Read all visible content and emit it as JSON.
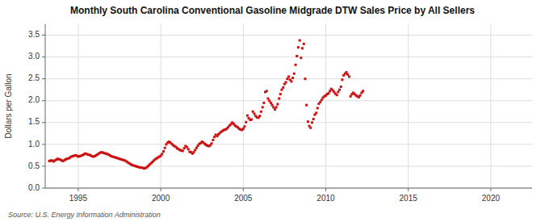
{
  "chart_data": {
    "type": "scatter",
    "title": "Monthly South Carolina Conventional Gasoline Midgrade DTW Sales Price by All Sellers",
    "ylabel": "Dollars per Gallon",
    "annotations": [
      "Source: U.S. Energy Information Administration"
    ],
    "color": "#cc1111",
    "marker": "square",
    "grid": true,
    "xlim": [
      1993.0,
      2022.5
    ],
    "ylim": [
      0.0,
      3.75
    ],
    "xticks": [
      1995,
      2000,
      2005,
      2010,
      2015,
      2020
    ],
    "yticks": [
      {
        "value": 0.0,
        "label": "0.0"
      },
      0.5,
      {
        "value": 1.0,
        "label": "1.0"
      },
      1.5,
      {
        "value": 2.0,
        "label": "2.0"
      },
      2.5,
      {
        "value": 3.0,
        "label": "3.0"
      },
      3.5
    ],
    "x": [
      1993.25,
      1993.33,
      1993.42,
      1993.5,
      1993.58,
      1993.67,
      1993.75,
      1993.83,
      1993.92,
      1994.0,
      1994.08,
      1994.17,
      1994.25,
      1994.33,
      1994.42,
      1994.5,
      1994.58,
      1994.67,
      1994.75,
      1994.83,
      1994.92,
      1995.0,
      1995.08,
      1995.17,
      1995.25,
      1995.33,
      1995.42,
      1995.5,
      1995.58,
      1995.67,
      1995.75,
      1995.83,
      1995.92,
      1996.0,
      1996.08,
      1996.17,
      1996.25,
      1996.33,
      1996.42,
      1996.5,
      1996.58,
      1996.67,
      1996.75,
      1996.83,
      1996.92,
      1997.0,
      1997.08,
      1997.17,
      1997.25,
      1997.33,
      1997.42,
      1997.5,
      1997.58,
      1997.67,
      1997.75,
      1997.83,
      1997.92,
      1998.0,
      1998.08,
      1998.17,
      1998.25,
      1998.33,
      1998.42,
      1998.5,
      1998.58,
      1998.67,
      1998.75,
      1998.83,
      1998.92,
      1999.0,
      1999.08,
      1999.17,
      1999.25,
      1999.33,
      1999.42,
      1999.5,
      1999.58,
      1999.67,
      1999.75,
      1999.83,
      1999.92,
      2000.0,
      2000.08,
      2000.17,
      2000.25,
      2000.33,
      2000.42,
      2000.5,
      2000.58,
      2000.67,
      2000.75,
      2000.83,
      2000.92,
      2001.0,
      2001.08,
      2001.17,
      2001.25,
      2001.33,
      2001.42,
      2001.5,
      2001.58,
      2001.67,
      2001.75,
      2001.83,
      2001.92,
      2002.0,
      2002.08,
      2002.17,
      2002.25,
      2002.33,
      2002.42,
      2002.5,
      2002.58,
      2002.67,
      2002.75,
      2002.83,
      2002.92,
      2003.0,
      2003.08,
      2003.17,
      2003.25,
      2003.33,
      2003.42,
      2003.5,
      2003.58,
      2003.67,
      2003.75,
      2003.83,
      2003.92,
      2004.0,
      2004.08,
      2004.17,
      2004.25,
      2004.33,
      2004.42,
      2004.5,
      2004.58,
      2004.67,
      2004.75,
      2004.83,
      2004.92,
      2005.0,
      2005.08,
      2005.17,
      2005.25,
      2005.33,
      2005.42,
      2005.5,
      2005.58,
      2005.67,
      2005.75,
      2005.83,
      2005.92,
      2006.0,
      2006.08,
      2006.17,
      2006.25,
      2006.33,
      2006.42,
      2006.5,
      2006.58,
      2006.67,
      2006.75,
      2006.83,
      2006.92,
      2007.0,
      2007.08,
      2007.17,
      2007.25,
      2007.33,
      2007.42,
      2007.5,
      2007.58,
      2007.67,
      2007.75,
      2007.83,
      2007.92,
      2008.0,
      2008.08,
      2008.17,
      2008.25,
      2008.33,
      2008.42,
      2008.5,
      2008.58,
      2008.67,
      2008.75,
      2008.83,
      2008.92,
      2009.0,
      2009.08,
      2009.17,
      2009.25,
      2009.33,
      2009.42,
      2009.5,
      2009.58,
      2009.67,
      2009.75,
      2009.83,
      2009.92,
      2010.0,
      2010.08,
      2010.17,
      2010.25,
      2010.33,
      2010.42,
      2010.5,
      2010.58,
      2010.67,
      2010.75,
      2010.83,
      2010.92,
      2011.0,
      2011.08,
      2011.17,
      2011.25,
      2011.33,
      2011.42,
      2011.5,
      2011.58,
      2011.67,
      2011.75,
      2011.83,
      2011.92,
      2012.0,
      2012.08,
      2012.17,
      2012.25
    ],
    "values": [
      0.62,
      0.63,
      0.63,
      0.61,
      0.63,
      0.65,
      0.67,
      0.66,
      0.65,
      0.63,
      0.62,
      0.64,
      0.66,
      0.67,
      0.68,
      0.7,
      0.72,
      0.73,
      0.74,
      0.75,
      0.74,
      0.72,
      0.73,
      0.74,
      0.75,
      0.77,
      0.79,
      0.78,
      0.77,
      0.76,
      0.75,
      0.73,
      0.72,
      0.73,
      0.75,
      0.77,
      0.79,
      0.81,
      0.82,
      0.81,
      0.8,
      0.79,
      0.78,
      0.77,
      0.75,
      0.73,
      0.72,
      0.71,
      0.7,
      0.69,
      0.68,
      0.67,
      0.66,
      0.65,
      0.64,
      0.63,
      0.61,
      0.59,
      0.57,
      0.55,
      0.53,
      0.52,
      0.51,
      0.5,
      0.49,
      0.48,
      0.47,
      0.47,
      0.46,
      0.45,
      0.46,
      0.48,
      0.51,
      0.54,
      0.57,
      0.6,
      0.63,
      0.66,
      0.68,
      0.7,
      0.72,
      0.74,
      0.78,
      0.84,
      0.92,
      1.0,
      1.04,
      1.06,
      1.04,
      1.01,
      0.98,
      0.96,
      0.94,
      0.91,
      0.89,
      0.87,
      0.86,
      0.85,
      0.91,
      0.96,
      0.94,
      0.89,
      0.83,
      0.82,
      0.79,
      0.82,
      0.87,
      0.92,
      0.97,
      1.01,
      1.03,
      1.06,
      1.04,
      1.01,
      0.99,
      0.97,
      0.96,
      0.98,
      1.02,
      1.1,
      1.17,
      1.22,
      1.19,
      1.23,
      1.26,
      1.29,
      1.31,
      1.33,
      1.34,
      1.36,
      1.39,
      1.43,
      1.46,
      1.5,
      1.47,
      1.43,
      1.41,
      1.39,
      1.36,
      1.34,
      1.33,
      1.36,
      1.41,
      1.51,
      1.66,
      1.6,
      1.56,
      1.57,
      1.75,
      1.7,
      1.65,
      1.62,
      1.61,
      1.65,
      1.75,
      1.85,
      1.95,
      2.2,
      2.22,
      2.05,
      2.0,
      1.95,
      1.9,
      1.85,
      1.8,
      1.85,
      1.92,
      2.05,
      2.15,
      2.25,
      2.3,
      2.38,
      2.42,
      2.5,
      2.55,
      2.48,
      2.44,
      2.52,
      2.62,
      2.82,
      3.02,
      3.22,
      3.38,
      2.98,
      3.2,
      3.3,
      2.5,
      1.9,
      1.52,
      1.42,
      1.38,
      1.5,
      1.58,
      1.68,
      1.72,
      1.83,
      1.93,
      1.97,
      2.02,
      2.07,
      2.1,
      2.12,
      2.15,
      2.17,
      2.22,
      2.27,
      2.24,
      2.2,
      2.16,
      2.13,
      2.2,
      2.25,
      2.32,
      2.48,
      2.58,
      2.62,
      2.65,
      2.6,
      2.55,
      2.1,
      2.15,
      2.18,
      2.15,
      2.12,
      2.1,
      2.08,
      2.12,
      2.18,
      2.22
    ]
  }
}
